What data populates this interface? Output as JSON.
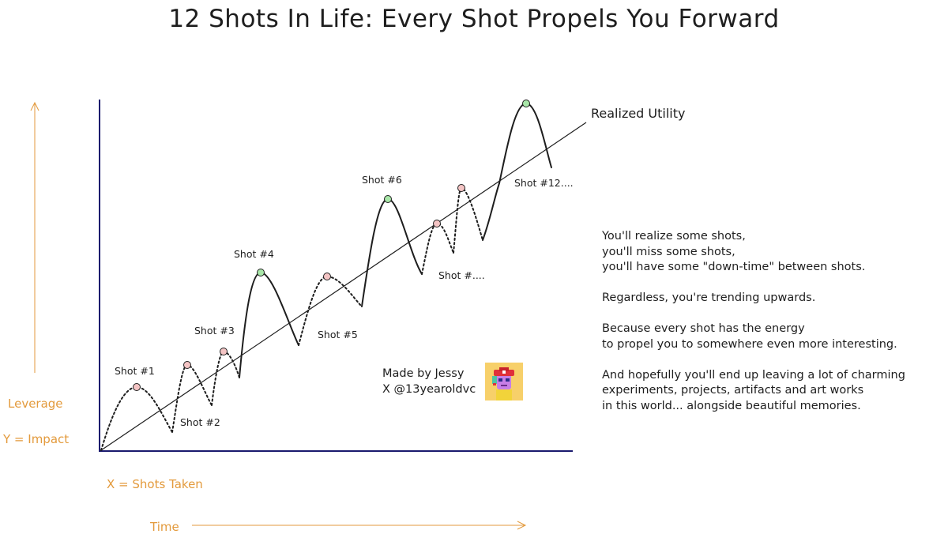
{
  "title": "12 Shots In Life: Every Shot Propels You Forward",
  "axis": {
    "y_leverage": "Leverage",
    "y_impact": "Y = Impact",
    "x_shots": "X = Shots Taken",
    "x_time": "Time"
  },
  "trend_label": "Realized Utility",
  "shots": {
    "s1": "Shot #1",
    "s2": "Shot #2",
    "s3": "Shot #3",
    "s4": "Shot #4",
    "s5": "Shot #5",
    "s6": "Shot #6",
    "s_more": "Shot #....",
    "s12": "Shot #12...."
  },
  "notes": {
    "p1": [
      "You'll realize some shots,",
      "you'll miss some shots,",
      "you'll have some \"down-time\" between shots."
    ],
    "p2": [
      "Regardless, you're trending upwards."
    ],
    "p3": [
      "Because every shot has the energy",
      "to propel you to somewhere even more interesting."
    ],
    "p4": [
      "And hopefully you'll end up leaving a lot of charming",
      "experiments, projects, artifacts and art works",
      "in this world... alongside beautiful memories."
    ]
  },
  "credit": {
    "line1": "Made by Jessy",
    "line2": "X @13yearoldvc"
  },
  "colors": {
    "axis": "#1a1a6e",
    "accent_orange": "#e39a3c",
    "realized_dot": "#a8e6a8",
    "missed_dot": "#f4c4c4"
  },
  "icons": {
    "avatar": "pixel-avatar-icon"
  }
}
